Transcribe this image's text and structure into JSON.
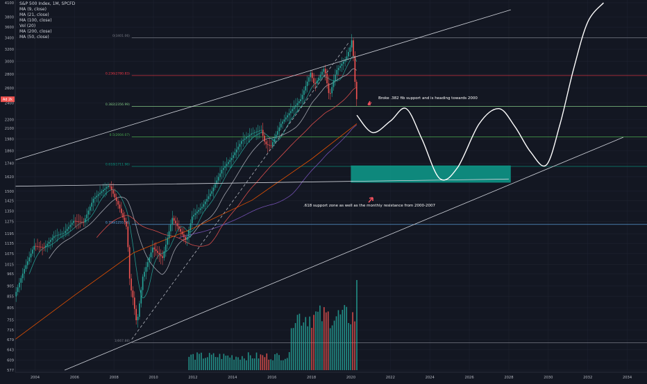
{
  "legend": {
    "symbol": "S&P 500 Index, 1M, SPCFD",
    "indicators": [
      "MA (9, close)",
      "MA (21, close)",
      "MA (100, close)",
      "Vol (20)",
      "MA (200, close)",
      "MA (50, close)"
    ]
  },
  "price_tag": "Ad 2k",
  "colors": {
    "background": "#131722",
    "grid": "#1e2230",
    "axis_text": "#b2b5be",
    "up": "#26a69a",
    "down": "#ef5350",
    "projection": "#ffffff",
    "support_zone": "#0e9c8c",
    "fib_0": "#787b86",
    "fib_236": "#f23645",
    "fib_382": "#81c784",
    "fib_5": "#4caf50",
    "fib_618": "#089981",
    "fib_786": "#64b5f6",
    "fib_1": "#787b86",
    "ma9": "#26a69a",
    "ma21": "#b2b5be",
    "ma50": "#ef5350",
    "ma100": "#7e57c2",
    "ma200": "#e65100",
    "arrow": "#f7525f"
  },
  "annotations": {
    "broke": "Broke .382 fib support and is heading towards 2000",
    "support": ".618 support zone as well as the monthly resistance from 2000-2007"
  },
  "chart_data": {
    "type": "candlestick",
    "title": "S&P 500 Index, 1M, SPCFD",
    "y_axis": {
      "scale": "log",
      "ylim": [
        577,
        4100
      ],
      "ticks": [
        4100,
        3800,
        3600,
        3400,
        3200,
        3000,
        2800,
        2600,
        2400,
        2200,
        2100,
        1980,
        1860,
        1740,
        1620,
        1500,
        1425,
        1350,
        1275,
        1195,
        1135,
        1075,
        1015,
        965,
        905,
        855,
        805,
        755,
        715,
        679,
        643,
        609,
        577
      ]
    },
    "x_axis": {
      "range": [
        2003.0,
        2035.0
      ],
      "ticks": [
        "2004",
        "2006",
        "2008",
        "2010",
        "2012",
        "2014",
        "2016",
        "2018",
        "2020",
        "2022",
        "2024",
        "2026",
        "2028",
        "2030",
        "2032",
        "2034"
      ]
    },
    "fib_levels": [
      {
        "label": "0(3401.06)",
        "value": 3401.06
      },
      {
        "label": "0.236(2780.83)",
        "value": 2780.83
      },
      {
        "label": "0.382(2356.99)",
        "value": 2356.99
      },
      {
        "label": "0.5(2004.07)",
        "value": 2004.07
      },
      {
        "label": "0.618(1711.96)",
        "value": 1711.96
      },
      {
        "label": "0.786(1255.76)",
        "value": 1255.76
      },
      {
        "label": "1(667.88)",
        "value": 667.88
      }
    ],
    "price_path": [
      [
        2003.0,
        855
      ],
      [
        2003.5,
        990
      ],
      [
        2004.0,
        1120
      ],
      [
        2004.5,
        1110
      ],
      [
        2005.0,
        1180
      ],
      [
        2005.5,
        1200
      ],
      [
        2006.0,
        1280
      ],
      [
        2006.5,
        1270
      ],
      [
        2007.0,
        1440
      ],
      [
        2007.5,
        1510
      ],
      [
        2007.8,
        1550
      ],
      [
        2008.3,
        1380
      ],
      [
        2008.7,
        1230
      ],
      [
        2008.85,
        910
      ],
      [
        2009.0,
        850
      ],
      [
        2009.2,
        735
      ],
      [
        2009.5,
        950
      ],
      [
        2010.0,
        1110
      ],
      [
        2010.5,
        1050
      ],
      [
        2011.0,
        1300
      ],
      [
        2011.7,
        1150
      ],
      [
        2012.0,
        1310
      ],
      [
        2012.5,
        1380
      ],
      [
        2013.0,
        1500
      ],
      [
        2013.5,
        1680
      ],
      [
        2014.0,
        1790
      ],
      [
        2014.5,
        1960
      ],
      [
        2015.0,
        2040
      ],
      [
        2015.5,
        2080
      ],
      [
        2015.7,
        1930
      ],
      [
        2016.0,
        1910
      ],
      [
        2016.5,
        2150
      ],
      [
        2017.0,
        2300
      ],
      [
        2017.5,
        2450
      ],
      [
        2018.0,
        2820
      ],
      [
        2018.2,
        2640
      ],
      [
        2018.7,
        2900
      ],
      [
        2018.95,
        2480
      ],
      [
        2019.3,
        2850
      ],
      [
        2019.8,
        3050
      ],
      [
        2020.0,
        3230
      ],
      [
        2020.1,
        3380
      ],
      [
        2020.2,
        2950
      ],
      [
        2020.3,
        2450
      ]
    ],
    "volume_bar_count": 83,
    "projection": [
      [
        2020.3,
        2250
      ],
      [
        2021.1,
        2050
      ],
      [
        2022.0,
        2180
      ],
      [
        2022.8,
        2330
      ],
      [
        2023.6,
        1980
      ],
      [
        2024.5,
        1605
      ],
      [
        2025.4,
        1700
      ],
      [
        2026.5,
        2150
      ],
      [
        2027.5,
        2330
      ],
      [
        2028.3,
        2120
      ],
      [
        2029.1,
        1850
      ],
      [
        2029.9,
        1725
      ],
      [
        2030.6,
        2150
      ],
      [
        2031.3,
        2900
      ],
      [
        2032.0,
        3700
      ],
      [
        2032.8,
        4100
      ]
    ],
    "support_zone": {
      "x": [
        2020.0,
        2028.1
      ],
      "y": [
        1570,
        1720
      ]
    },
    "trendlines": [
      {
        "name": "channel-top",
        "points": [
          [
            2003.0,
            1770
          ],
          [
            2028.1,
            3950
          ]
        ]
      },
      {
        "name": "channel-bottom",
        "points": [
          [
            2005.5,
            577
          ],
          [
            2033.8,
            2000
          ]
        ]
      },
      {
        "name": "resistance-2000-2007",
        "points": [
          [
            2003.0,
            1540
          ],
          [
            2028.0,
            1600
          ]
        ]
      },
      {
        "name": "inner-dashed",
        "points": [
          [
            2008.9,
            680
          ],
          [
            2019.9,
            3320
          ]
        ]
      }
    ]
  }
}
